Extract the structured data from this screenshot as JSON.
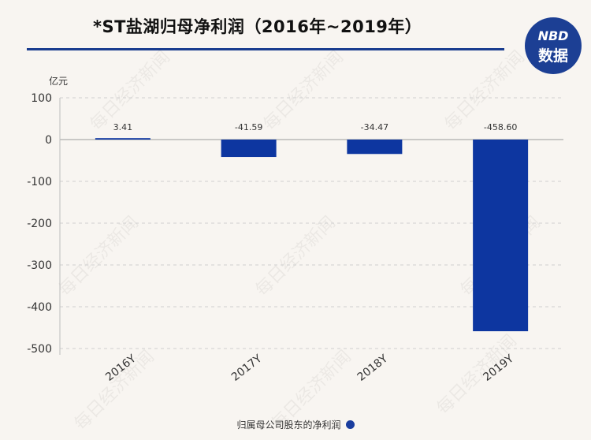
{
  "title": "*ST盐湖归母净利润（2016年~2019年）",
  "logo": {
    "top": "NBD",
    "bottom": "数据"
  },
  "watermark": "每日经济新闻",
  "chart_data": {
    "type": "bar",
    "title": "*ST盐湖归母净利润（2016年~2019年）",
    "unit": "亿元",
    "categories": [
      "2016Y",
      "2017Y",
      "2018Y",
      "2019Y"
    ],
    "series": [
      {
        "name": "归属母公司股东的净利润",
        "values": [
          3.41,
          -41.59,
          -34.47,
          -458.6
        ]
      }
    ],
    "data_labels": [
      "3.41",
      "-41.59",
      "-34.47",
      "-458.60"
    ],
    "ylim": [
      -500,
      100
    ],
    "yticks": [
      100,
      0,
      -100,
      -200,
      -300,
      -400,
      -500
    ],
    "ytick_labels": [
      "100",
      "0",
      "-100",
      "-200",
      "-300",
      "-400",
      "-500"
    ],
    "grid": true,
    "legend": "bottom",
    "bar_color": "#0d36a0"
  }
}
